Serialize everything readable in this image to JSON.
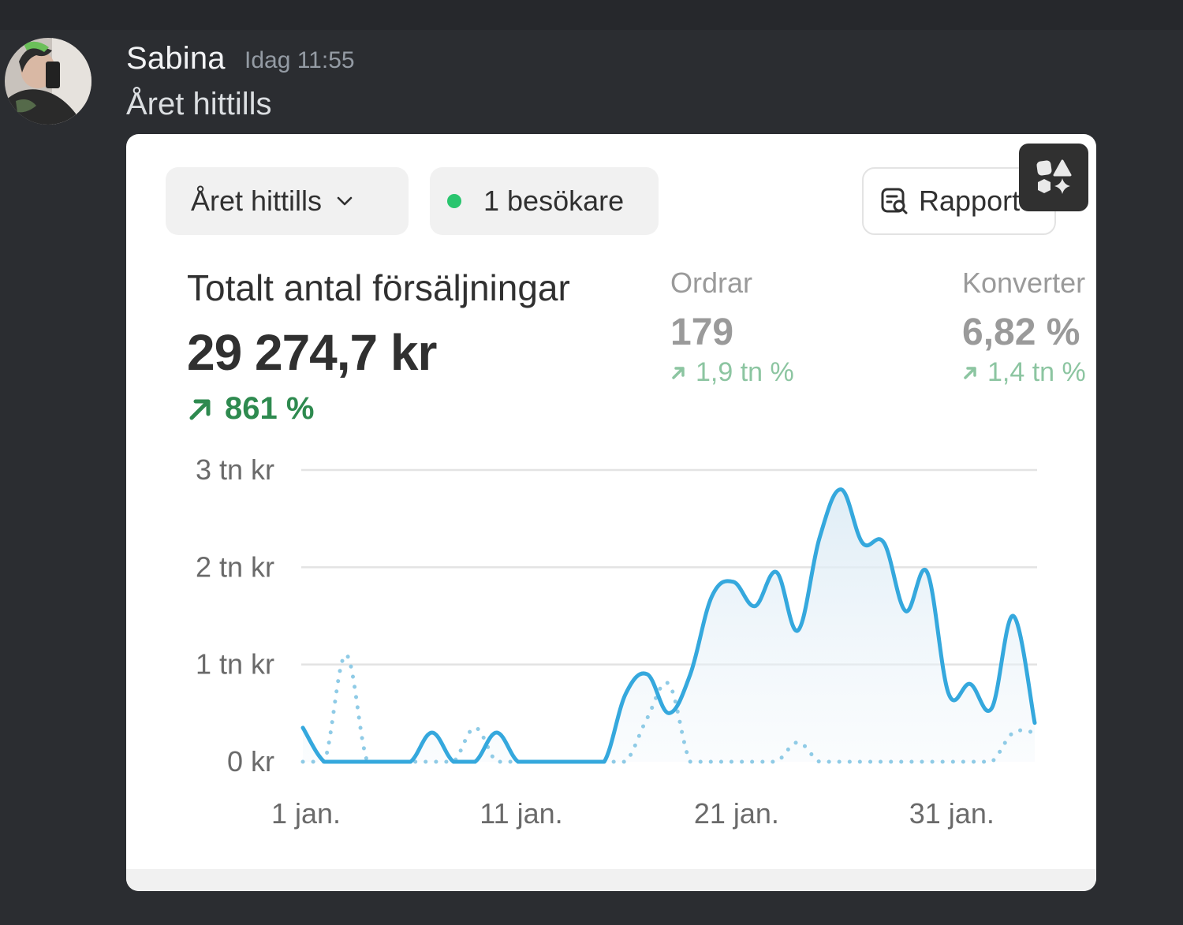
{
  "message": {
    "username": "Sabina",
    "timestamp": "Idag 11:55",
    "text": "Året hittills"
  },
  "card": {
    "period_label": "Året hittills",
    "visitors_label": "1 besökare",
    "report_label": "Rapport",
    "main_metric": {
      "title": "Totalt antal försäljningar",
      "value": "29 274,7 kr",
      "change": "861 %"
    },
    "orders": {
      "label": "Ordrar",
      "value": "179",
      "change": "1,9 tn %"
    },
    "conversion": {
      "label": "Konverter",
      "value": "6,82 %",
      "change": "1,4 tn %"
    }
  },
  "colors": {
    "current_series": "#35a8dd",
    "previous_series": "#8fcbe6",
    "positive_change": "#2e8a4f",
    "visitor_dot": "#29c56e"
  },
  "chart_data": {
    "type": "line",
    "x": [
      "1 jan.",
      "2 jan.",
      "3 jan.",
      "4 jan.",
      "5 jan.",
      "6 jan.",
      "7 jan.",
      "8 jan.",
      "9 jan.",
      "10 jan.",
      "11 jan.",
      "12 jan.",
      "13 jan.",
      "14 jan.",
      "15 jan.",
      "16 jan.",
      "17 jan.",
      "18 jan.",
      "19 jan.",
      "20 jan.",
      "21 jan.",
      "22 jan.",
      "23 jan.",
      "24 jan.",
      "25 jan.",
      "26 jan.",
      "27 jan.",
      "28 jan.",
      "29 jan.",
      "30 jan.",
      "31 jan.",
      "1 feb.",
      "2 feb.",
      "3 feb.",
      "4 feb."
    ],
    "x_tick_labels": [
      "1 jan.",
      "11 jan.",
      "21 jan.",
      "31 jan."
    ],
    "y_tick_labels": [
      "0 kr",
      "1 tn kr",
      "2 tn kr",
      "3 tn kr"
    ],
    "ylim": [
      0,
      3000
    ],
    "series": [
      {
        "style": "solid",
        "values": [
          350,
          0,
          0,
          0,
          0,
          0,
          300,
          0,
          0,
          300,
          0,
          0,
          0,
          0,
          0,
          700,
          900,
          500,
          900,
          1700,
          1850,
          1600,
          1950,
          1350,
          2300,
          2800,
          2250,
          2250,
          1550,
          1950,
          700,
          800,
          550,
          1500,
          400
        ]
      },
      {
        "style": "dotted",
        "values": [
          0,
          0,
          1100,
          0,
          0,
          0,
          0,
          0,
          350,
          0,
          0,
          0,
          0,
          0,
          0,
          0,
          450,
          800,
          0,
          0,
          0,
          0,
          0,
          200,
          0,
          0,
          0,
          0,
          0,
          0,
          0,
          0,
          0,
          300,
          300
        ]
      }
    ],
    "grid": true,
    "title": "Totalt antal försäljningar"
  }
}
